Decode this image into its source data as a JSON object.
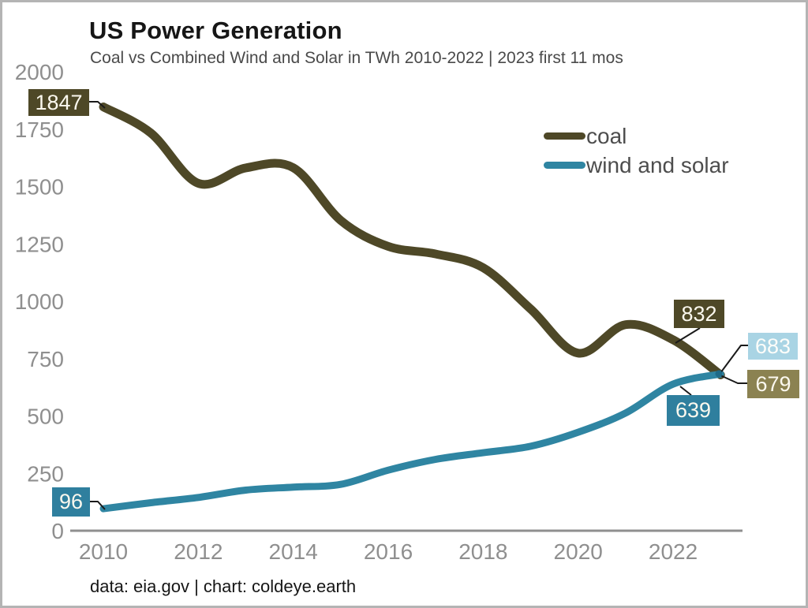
{
  "header": {
    "title": "US Power Generation",
    "subtitle": "Coal vs Combined Wind and Solar in TWh 2010-2022 | 2023 first 11 mos"
  },
  "footer": {
    "credit": "data: eia.gov | chart: coldeye.earth"
  },
  "colors": {
    "coal_line": "#4e4827",
    "wind_solar_line": "#2f85a2",
    "coal_label_bg": "#4e4827",
    "wind_label_bg": "#2f7f9e",
    "wind_2023_label_bg": "#a9d4e4",
    "coal_2023_label_bg": "#8b8251",
    "axis": "#8f8f8f",
    "legend_text": "#4d4d4d",
    "callout": "#1a1a1a"
  },
  "chart_data": {
    "type": "line",
    "title": "US Power Generation",
    "subtitle": "Coal vs Combined Wind and Solar in TWh 2010-2022 | 2023 first 11 mos",
    "x": [
      2010,
      2011,
      2012,
      2013,
      2014,
      2015,
      2016,
      2017,
      2018,
      2019,
      2020,
      2021,
      2022,
      2023
    ],
    "series": [
      {
        "name": "coal",
        "color": "#4e4827",
        "values": [
          1847,
          1733,
          1514,
          1581,
          1582,
          1352,
          1239,
          1206,
          1146,
          966,
          774,
          898,
          832,
          679
        ]
      },
      {
        "name": "wind and solar",
        "color": "#2f85a2",
        "values": [
          96,
          122,
          145,
          177,
          190,
          202,
          264,
          311,
          340,
          368,
          429,
          513,
          639,
          683
        ]
      }
    ],
    "xticks": [
      2010,
      2012,
      2014,
      2016,
      2018,
      2020,
      2022
    ],
    "yticks": [
      0,
      250,
      500,
      750,
      1000,
      1250,
      1500,
      1750,
      2000
    ],
    "ylim": [
      0,
      2000
    ],
    "xlabel": "",
    "ylabel": "",
    "grid": false,
    "legend_position": "top-right",
    "annotations": [
      {
        "id": "coal-start-2010",
        "value": "1847"
      },
      {
        "id": "wind-start-2010",
        "value": "96"
      },
      {
        "id": "coal-2022",
        "value": "832"
      },
      {
        "id": "wind-2022",
        "value": "639"
      },
      {
        "id": "wind-2023",
        "value": "683"
      },
      {
        "id": "coal-2023",
        "value": "679"
      }
    ]
  }
}
